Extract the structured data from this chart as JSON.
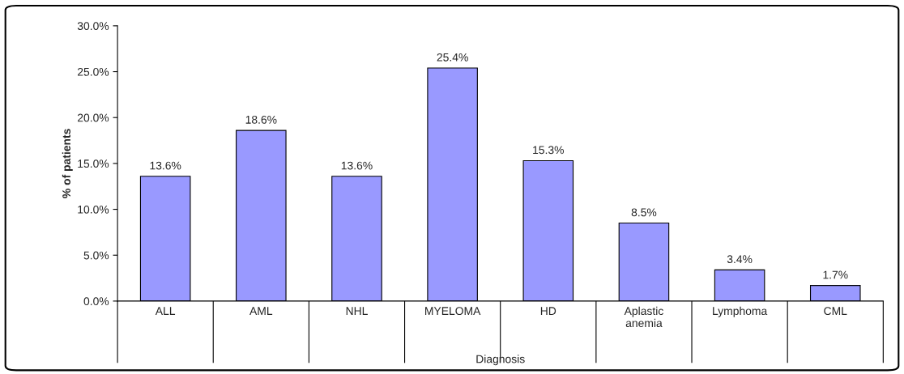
{
  "chart_data": {
    "type": "bar",
    "xlabel": "Diagnosis",
    "ylabel": "% of patients",
    "categories": [
      "ALL",
      "AML",
      "NHL",
      "MYELOMA",
      "HD",
      "Aplastic\nanemia",
      "Lymphoma",
      "CML"
    ],
    "values": [
      13.6,
      18.6,
      13.6,
      25.4,
      15.3,
      8.5,
      3.4,
      1.7
    ],
    "value_labels": [
      "13.6%",
      "18.6%",
      "13.6%",
      "25.4%",
      "15.3%",
      "8.5%",
      "3.4%",
      "1.7%"
    ],
    "color": "#9999ff",
    "ylim": [
      0,
      30
    ],
    "yticks": [
      {
        "value": 0,
        "label": "0.0%"
      },
      {
        "value": 5,
        "label": "5.0%"
      },
      {
        "value": 10,
        "label": "10.0%"
      },
      {
        "value": 15,
        "label": "15.0%"
      },
      {
        "value": 20,
        "label": "20.0%"
      },
      {
        "value": 25,
        "label": "25.0%"
      },
      {
        "value": 30,
        "label": "30.0%"
      }
    ],
    "grid": false,
    "legend": false
  }
}
